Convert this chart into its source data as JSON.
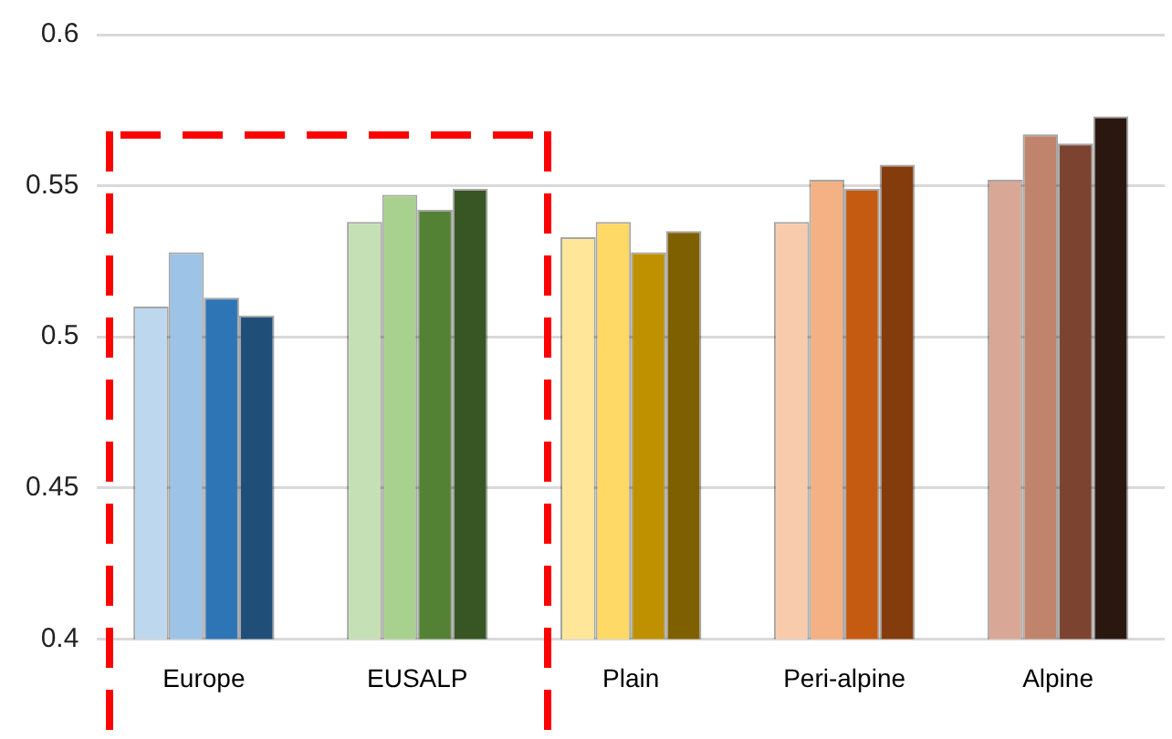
{
  "chart_data": {
    "type": "bar",
    "categories": [
      "Europe",
      "EUSALP",
      "Plain",
      "Peri-alpine",
      "Alpine"
    ],
    "series": [
      {
        "colors": [
          "#bdd7ee",
          "#c5e0b4",
          "#ffe699",
          "#f8cbad",
          "#d9a796"
        ],
        "values": [
          0.51,
          0.538,
          0.533,
          0.538,
          0.552
        ]
      },
      {
        "colors": [
          "#9dc3e6",
          "#a9d18e",
          "#ffd966",
          "#f4b183",
          "#c0846c"
        ],
        "values": [
          0.528,
          0.547,
          0.538,
          0.552,
          0.567
        ]
      },
      {
        "colors": [
          "#2e75b6",
          "#548235",
          "#bf9000",
          "#c55a11",
          "#7b4330"
        ],
        "values": [
          0.513,
          0.542,
          0.528,
          0.549,
          0.564
        ]
      },
      {
        "colors": [
          "#1f4e79",
          "#375623",
          "#7f6000",
          "#843c0c",
          "#2a1810"
        ],
        "values": [
          0.507,
          0.549,
          0.535,
          0.557,
          0.573
        ]
      }
    ],
    "ylim": [
      0.4,
      0.6
    ],
    "yticks": [
      0.4,
      0.45,
      0.5,
      0.55,
      0.6
    ],
    "grid": "y",
    "legend": false
  }
}
